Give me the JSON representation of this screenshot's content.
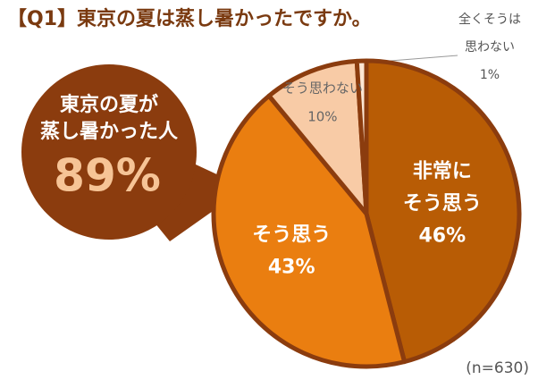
{
  "chart_data": {
    "type": "pie",
    "title": "【Q1】東京の夏は蒸し暑かったですか。",
    "categories": [
      [
        "非常に",
        "そう思う"
      ],
      [
        "そう思う"
      ],
      [
        "そう思わない"
      ],
      [
        "全くそうは",
        "思わない"
      ]
    ],
    "values": [
      46,
      43,
      10,
      1
    ],
    "value_labels": [
      "46%",
      "43%",
      "10%",
      "1%"
    ],
    "colors": [
      "#b85c05",
      "#ea7e10",
      "#f8cba6",
      "#fce6d4"
    ],
    "callout": {
      "lines": [
        "東京の夏が",
        "蒸し暑かった人"
      ],
      "text": "89%"
    },
    "note": "(n=630)"
  }
}
